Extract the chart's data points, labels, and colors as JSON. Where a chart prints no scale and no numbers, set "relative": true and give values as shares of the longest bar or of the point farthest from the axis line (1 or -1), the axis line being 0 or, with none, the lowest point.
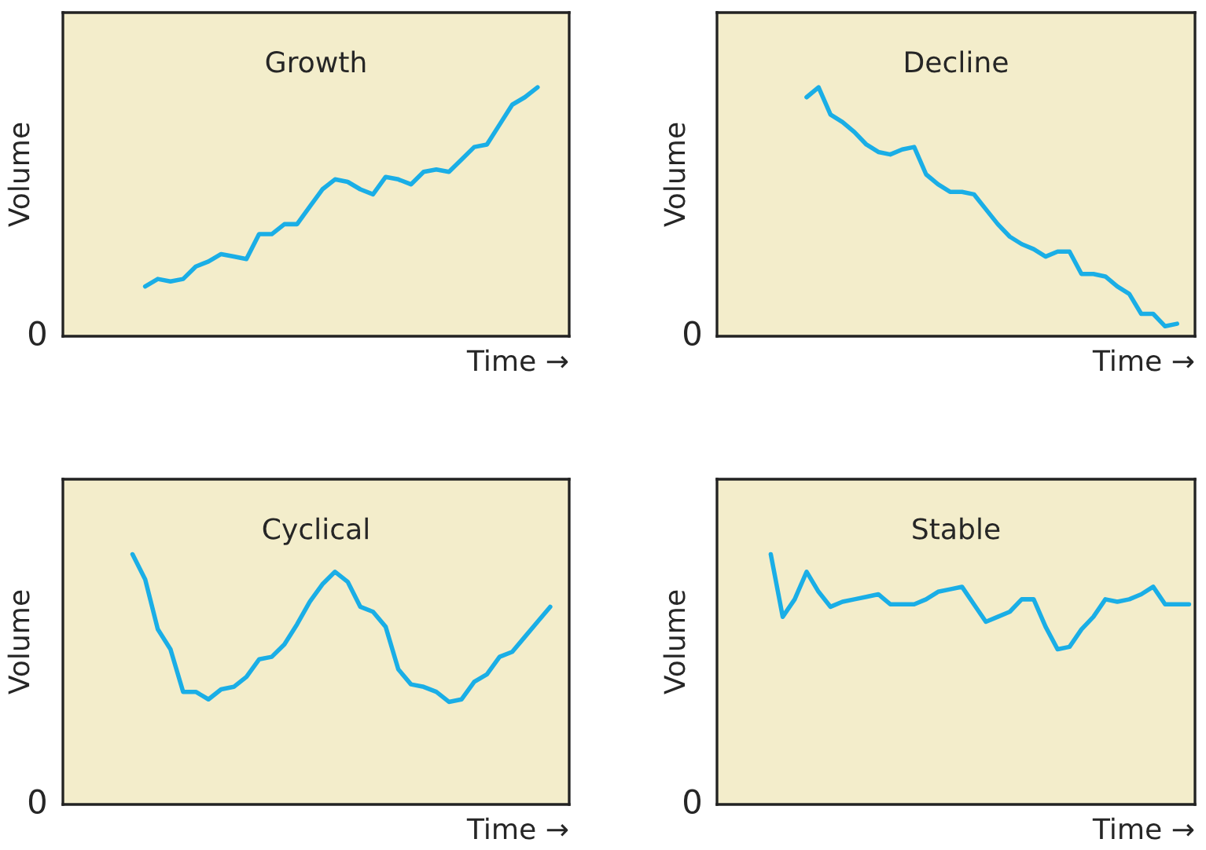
{
  "chart_data": [
    {
      "type": "line",
      "title": "Growth",
      "xlabel": "Time →",
      "ylabel": "Volume",
      "relative": true,
      "tick_labels": false,
      "annotations": [
        "0"
      ],
      "categories": [
        null,
        null,
        null,
        null,
        null,
        null,
        null,
        null,
        null,
        null,
        null,
        null,
        null,
        null,
        null,
        null,
        null,
        null,
        null,
        null,
        null,
        null,
        null,
        null,
        null,
        null,
        null,
        null,
        null,
        null,
        null,
        null,
        null,
        null,
        null,
        null,
        null,
        null,
        null,
        null
      ],
      "series": [
        {
          "color": "#1aaee6",
          "values": [
            null,
            null,
            null,
            null,
            null,
            null,
            0.2,
            0.23,
            0.22,
            0.23,
            0.28,
            0.3,
            0.33,
            0.32,
            0.31,
            0.41,
            0.41,
            0.45,
            0.45,
            0.52,
            0.59,
            0.63,
            0.62,
            0.59,
            0.57,
            0.64,
            0.63,
            0.61,
            0.66,
            0.67,
            0.66,
            0.71,
            0.76,
            0.77,
            0.85,
            0.93,
            0.96,
            1.0,
            null,
            null
          ]
        }
      ]
    },
    {
      "type": "line",
      "title": "Decline",
      "xlabel": "Time →",
      "ylabel": "Volume",
      "relative": true,
      "tick_labels": false,
      "annotations": [
        "0"
      ],
      "categories": [
        null,
        null,
        null,
        null,
        null,
        null,
        null,
        null,
        null,
        null,
        null,
        null,
        null,
        null,
        null,
        null,
        null,
        null,
        null,
        null,
        null,
        null,
        null,
        null,
        null,
        null,
        null,
        null,
        null,
        null,
        null,
        null,
        null,
        null,
        null,
        null,
        null,
        null,
        null,
        null
      ],
      "series": [
        {
          "color": "#1aaee6",
          "values": [
            null,
            null,
            null,
            null,
            null,
            null,
            null,
            0.96,
            1.0,
            0.89,
            0.86,
            0.82,
            0.77,
            0.74,
            0.73,
            0.75,
            0.76,
            0.65,
            0.61,
            0.58,
            0.58,
            0.57,
            0.51,
            0.45,
            0.4,
            0.37,
            0.35,
            0.32,
            0.34,
            0.34,
            0.25,
            0.25,
            0.24,
            0.2,
            0.17,
            0.09,
            0.09,
            0.04,
            0.05,
            null
          ]
        }
      ]
    },
    {
      "type": "line",
      "title": "Cyclical",
      "xlabel": "Time →",
      "ylabel": "Volume",
      "relative": true,
      "tick_labels": false,
      "annotations": [
        "0"
      ],
      "categories": [
        null,
        null,
        null,
        null,
        null,
        null,
        null,
        null,
        null,
        null,
        null,
        null,
        null,
        null,
        null,
        null,
        null,
        null,
        null,
        null,
        null,
        null,
        null,
        null,
        null,
        null,
        null,
        null,
        null,
        null,
        null,
        null,
        null,
        null,
        null,
        null,
        null,
        null,
        null,
        null
      ],
      "series": [
        {
          "color": "#1aaee6",
          "values": [
            null,
            null,
            null,
            null,
            null,
            1.0,
            0.9,
            0.7,
            0.62,
            0.45,
            0.45,
            0.42,
            0.46,
            0.47,
            0.51,
            0.58,
            0.59,
            0.64,
            0.72,
            0.81,
            0.88,
            0.93,
            0.89,
            0.79,
            0.77,
            0.71,
            0.54,
            0.48,
            0.47,
            0.45,
            0.41,
            0.42,
            0.49,
            0.52,
            0.59,
            0.61,
            0.67,
            0.73,
            0.79,
            null
          ]
        }
      ]
    },
    {
      "type": "line",
      "title": "Stable",
      "xlabel": "Time →",
      "ylabel": "Volume",
      "relative": true,
      "tick_labels": false,
      "annotations": [
        "0"
      ],
      "categories": [
        null,
        null,
        null,
        null,
        null,
        null,
        null,
        null,
        null,
        null,
        null,
        null,
        null,
        null,
        null,
        null,
        null,
        null,
        null,
        null,
        null,
        null,
        null,
        null,
        null,
        null,
        null,
        null,
        null,
        null,
        null,
        null,
        null,
        null,
        null,
        null,
        null,
        null,
        null,
        null
      ],
      "series": [
        {
          "color": "#1aaee6",
          "values": [
            null,
            null,
            null,
            null,
            1.0,
            0.75,
            0.82,
            0.93,
            0.85,
            0.79,
            0.81,
            0.82,
            0.83,
            0.84,
            0.8,
            0.8,
            0.8,
            0.82,
            0.85,
            0.86,
            0.87,
            0.8,
            0.73,
            0.75,
            0.77,
            0.82,
            0.82,
            0.71,
            0.62,
            0.63,
            0.7,
            0.75,
            0.82,
            0.81,
            0.82,
            0.84,
            0.87,
            0.8,
            0.8,
            0.8
          ]
        }
      ]
    }
  ]
}
